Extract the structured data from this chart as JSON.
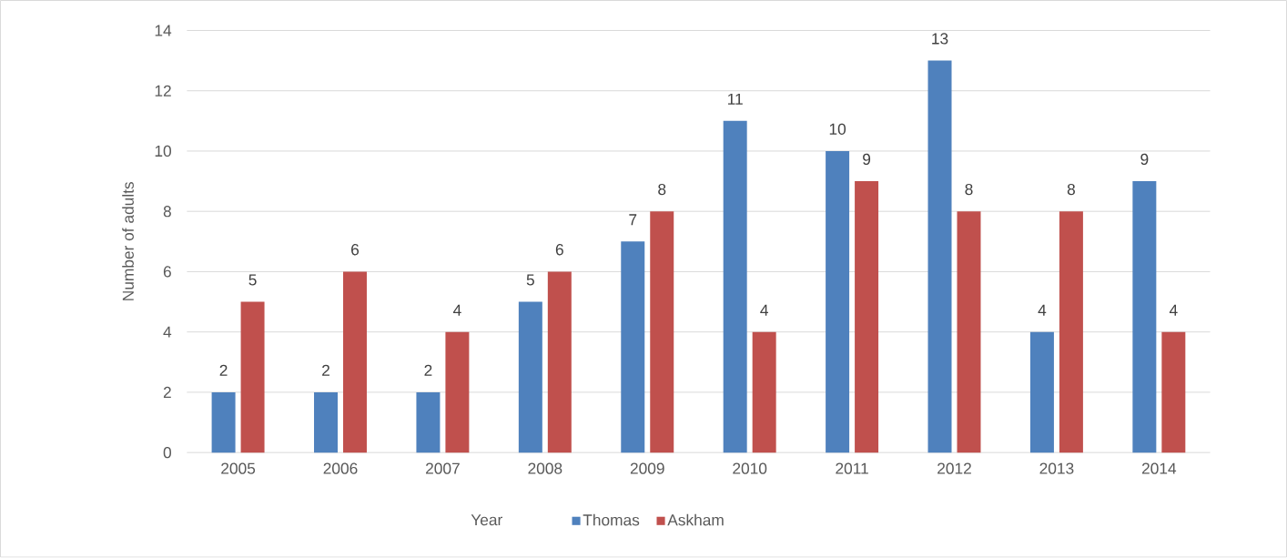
{
  "chart_data": {
    "type": "bar",
    "xlabel": "Year",
    "ylabel": "Number of adults",
    "categories": [
      "2005",
      "2006",
      "2007",
      "2008",
      "2009",
      "2010",
      "2011",
      "2012",
      "2013",
      "2014"
    ],
    "series": [
      {
        "name": "Thomas",
        "color": "#4f81bd",
        "values": [
          2,
          2,
          2,
          5,
          7,
          11,
          10,
          13,
          4,
          9
        ]
      },
      {
        "name": "Askham",
        "color": "#c0504d",
        "values": [
          5,
          6,
          4,
          6,
          8,
          4,
          9,
          8,
          8,
          4
        ]
      }
    ],
    "ylim": [
      0,
      14
    ],
    "yticks": [
      0,
      2,
      4,
      6,
      8,
      10,
      12,
      14
    ],
    "grid": "y",
    "legend": "bottom",
    "data_labels": true
  }
}
